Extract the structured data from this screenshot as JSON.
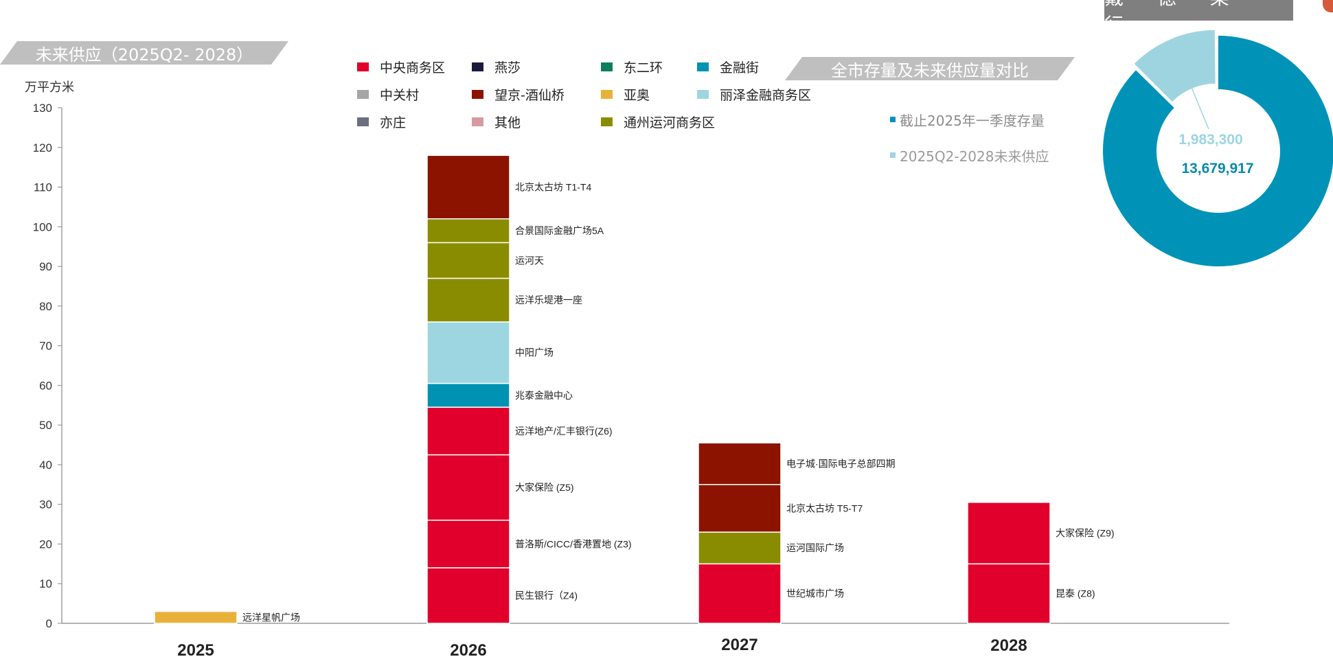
{
  "header": {
    "left_banner": "未来供应（2025Q2- 2028）",
    "right_banner": "全市存量及未来供应量对比",
    "brand": "戴 德 梁 行"
  },
  "unit_label": "万平方米",
  "colors": {
    "cbd": "#e0002b",
    "yansha": "#1b1a3d",
    "east2nd": "#0e7d5d",
    "financial_street": "#0092b2",
    "zhongguancun": "#a6a6a6",
    "wangjing": "#8b1300",
    "yaao": "#e8b23a",
    "lize": "#9dd6e0",
    "yizhuang": "#6b7080",
    "other": "#d69aa0",
    "tongzhou": "#8a8c00",
    "donut_stock": "#0093b7",
    "donut_future": "#9ed4e0"
  },
  "legend": [
    {
      "label": "中央商务区",
      "color": "#e0002b"
    },
    {
      "label": "燕莎",
      "color": "#1b1a3d"
    },
    {
      "label": "东二环",
      "color": "#0e7d5d"
    },
    {
      "label": "金融街",
      "color": "#0092b2"
    },
    {
      "label": "中关村",
      "color": "#a6a6a6"
    },
    {
      "label": "望京-酒仙桥",
      "color": "#8b1300"
    },
    {
      "label": "亚奥",
      "color": "#e8b23a"
    },
    {
      "label": "丽泽金融商务区",
      "color": "#9dd6e0"
    },
    {
      "label": "亦庄",
      "color": "#6b7080"
    },
    {
      "label": "其他",
      "color": "#d69aa0"
    },
    {
      "label": "通州运河商务区",
      "color": "#8a8c00"
    }
  ],
  "chart_data": [
    {
      "type": "bar",
      "stacked": true,
      "categories": [
        "2025",
        "2026",
        "2027",
        "2028"
      ],
      "ylabel": "万平方米",
      "ylim": [
        0,
        130
      ],
      "yticks": [
        0,
        10,
        20,
        30,
        40,
        50,
        60,
        70,
        80,
        90,
        100,
        110,
        120,
        130
      ],
      "grid": false,
      "legend_position": "top",
      "stacks": [
        {
          "category": "2025",
          "segments": [
            {
              "label": "远洋星帆广场",
              "region": "亚奥",
              "value": 3
            }
          ]
        },
        {
          "category": "2026",
          "segments": [
            {
              "label": "民生银行（Z4)",
              "region": "中央商务区",
              "value": 14
            },
            {
              "label": "普洛斯/CICC/香港置地 (Z3)",
              "region": "中央商务区",
              "value": 12
            },
            {
              "label": "大家保险 (Z5)",
              "region": "中央商务区",
              "value": 16.5
            },
            {
              "label": "远洋地产/汇丰银行(Z6)",
              "region": "中央商务区",
              "value": 12
            },
            {
              "label": "兆泰金融中心",
              "region": "金融街",
              "value": 6
            },
            {
              "label": "中阳广场",
              "region": "丽泽金融商务区",
              "value": 15.5
            },
            {
              "label": "远洋乐堤港一座",
              "region": "通州运河商务区",
              "value": 11
            },
            {
              "label": "运河天",
              "region": "通州运河商务区",
              "value": 9
            },
            {
              "label": "合景国际金融广场5A",
              "region": "通州运河商务区",
              "value": 6
            },
            {
              "label": "北京太古坊 T1-T4",
              "region": "望京-酒仙桥",
              "value": 16
            }
          ]
        },
        {
          "category": "2027",
          "segments": [
            {
              "label": "世纪城市广场",
              "region": "中央商务区",
              "value": 15
            },
            {
              "label": "运河国际广场",
              "region": "通州运河商务区",
              "value": 8
            },
            {
              "label": "北京太古坊 T5-T7",
              "region": "望京-酒仙桥",
              "value": 12
            },
            {
              "label": "电子城·国际电子总部四期",
              "region": "望京-酒仙桥",
              "value": 10.5
            }
          ]
        },
        {
          "category": "2028",
          "segments": [
            {
              "label": "昆泰 (Z8)",
              "region": "中央商务区",
              "value": 15
            },
            {
              "label": "大家保险 (Z9)",
              "region": "中央商务区",
              "value": 15.5
            }
          ]
        }
      ]
    },
    {
      "type": "pie",
      "donut": true,
      "title": "全市存量及未来供应量对比",
      "slices": [
        {
          "name": "截止2025年一季度存量",
          "value": 13679917,
          "label": "13,679,917",
          "color": "#0093b7"
        },
        {
          "name": "2025Q2-2028未来供应",
          "value": 1983300,
          "label": "1,983,300",
          "color": "#9ed4e0"
        }
      ],
      "legend_position": "left"
    }
  ]
}
